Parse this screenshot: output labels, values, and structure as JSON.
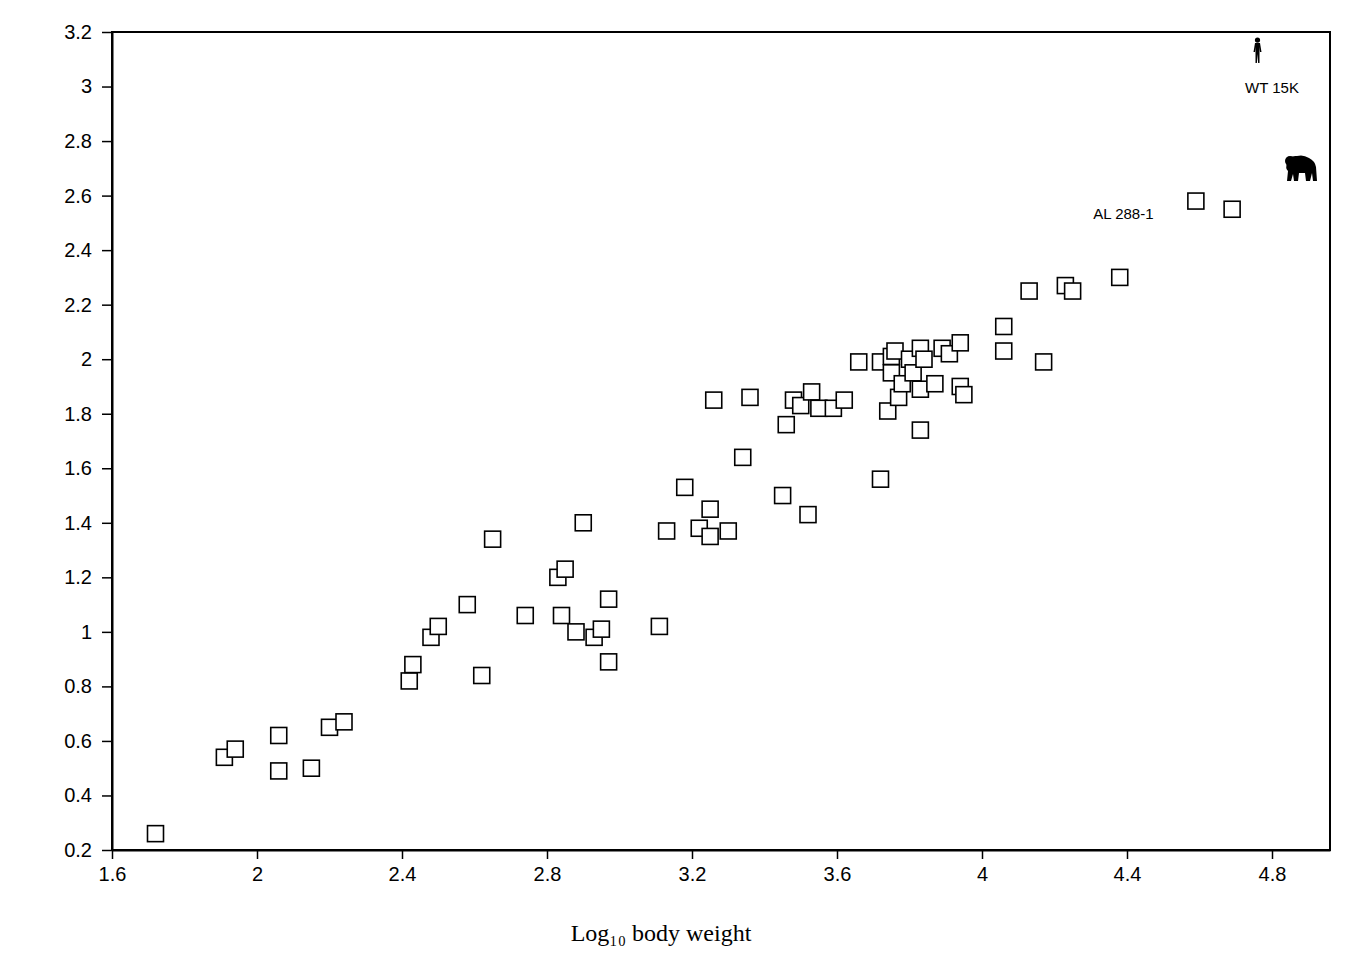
{
  "chart_data": {
    "type": "scatter",
    "x_label": "Log₁₀ body weight",
    "xlim": [
      1.6,
      4.96
    ],
    "ylim": [
      0.2,
      3.2
    ],
    "xticks": [
      1.6,
      2,
      2.4,
      2.8,
      3.2,
      3.6,
      4,
      4.4,
      4.8
    ],
    "yticks": [
      0.2,
      0.4,
      0.6,
      0.8,
      1,
      1.2,
      1.4,
      1.6,
      1.8,
      2,
      2.2,
      2.4,
      2.6,
      2.8,
      3,
      3.2
    ],
    "grid": false,
    "series": [
      {
        "marker": "square",
        "color": "#000000",
        "x": [
          1.72,
          1.91,
          1.94,
          2.06,
          2.06,
          2.15,
          2.2,
          2.24,
          2.42,
          2.43,
          2.48,
          2.5,
          2.58,
          2.62,
          2.65,
          2.74,
          2.83,
          2.85,
          2.84,
          2.88,
          2.9,
          2.93,
          2.95,
          2.97,
          2.97,
          3.11,
          3.13,
          3.18,
          3.22,
          3.25,
          3.25,
          3.26,
          3.3,
          3.34,
          3.36,
          3.45,
          3.46,
          3.48,
          3.5,
          3.52,
          3.53,
          3.55,
          3.59,
          3.62,
          3.66,
          3.72,
          3.72,
          3.74,
          3.75,
          3.75,
          3.76,
          3.77,
          3.78,
          3.8,
          3.81,
          3.83,
          3.83,
          3.83,
          3.84,
          3.87,
          3.89,
          3.91,
          3.94,
          3.94,
          3.95,
          4.06,
          4.06,
          4.13,
          4.17,
          4.23,
          4.25,
          4.38,
          4.59,
          4.69
        ],
        "values": [
          0.26,
          0.54,
          0.57,
          0.62,
          0.49,
          0.5,
          0.65,
          0.67,
          0.82,
          0.88,
          0.98,
          1.02,
          1.1,
          0.84,
          1.34,
          1.06,
          1.2,
          1.23,
          1.06,
          1.0,
          1.4,
          0.98,
          1.01,
          1.12,
          0.89,
          1.02,
          1.37,
          1.53,
          1.38,
          1.45,
          1.35,
          1.85,
          1.37,
          1.64,
          1.86,
          1.5,
          1.76,
          1.85,
          1.83,
          1.43,
          1.88,
          1.82,
          1.82,
          1.85,
          1.99,
          1.99,
          1.56,
          1.81,
          2.01,
          1.95,
          2.03,
          1.86,
          1.91,
          2.0,
          1.95,
          1.74,
          1.89,
          2.04,
          2.0,
          1.91,
          2.04,
          2.02,
          1.9,
          2.06,
          1.87,
          2.12,
          2.03,
          2.25,
          1.99,
          2.27,
          2.25,
          2.3,
          2.58,
          2.55
        ]
      },
      {
        "marker": "human",
        "color": "#000000",
        "x": [
          4.76
        ],
        "values": [
          3.13
        ]
      },
      {
        "marker": "gorilla",
        "color": "#000000",
        "x": [
          4.88
        ],
        "values": [
          2.69
        ]
      }
    ],
    "annotations": [
      {
        "text": "WT 15K",
        "x": 4.8,
        "y": 2.99
      },
      {
        "text": "AL 288-1",
        "x": 4.39,
        "y": 2.53
      }
    ]
  }
}
